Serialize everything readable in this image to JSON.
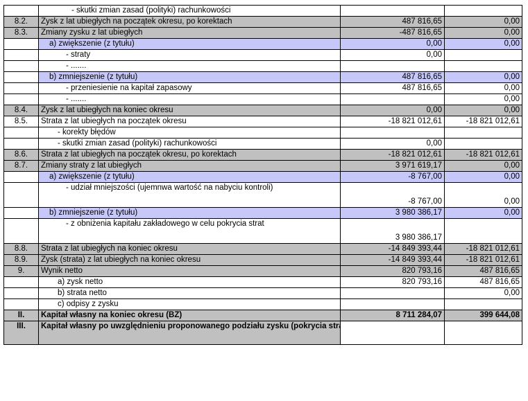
{
  "rows": [
    {
      "num": "",
      "label": "- skutki zmian zasad (polityki) rachunkowości",
      "v1": "",
      "v2": "",
      "style": "white",
      "indent": 44
    },
    {
      "num": "8.2.",
      "label": "Zysk z lat ubiegłych na początek okresu, po korektach",
      "v1": "487 816,65",
      "v2": "0,00",
      "style": "gray",
      "indent": 0
    },
    {
      "num": "8.3.",
      "label": "Zmiany zysku z lat ubiegłych",
      "v1": "-487 816,65",
      "v2": "0,00",
      "style": "gray",
      "indent": 0
    },
    {
      "num": "",
      "label": "a) zwiększenie (z tytułu)",
      "v1": "0,00",
      "v2": "0,00",
      "style": "lav",
      "indent": 12
    },
    {
      "num": "",
      "label": "- straty",
      "v1": "0,00",
      "v2": "",
      "style": "white",
      "indent": 36
    },
    {
      "num": "",
      "label": "- .......",
      "v1": "",
      "v2": "",
      "style": "white",
      "indent": 36
    },
    {
      "num": "",
      "label": "b) zmniejszenie (z tytułu)",
      "v1": "487 816,65",
      "v2": "0,00",
      "style": "lav",
      "indent": 12
    },
    {
      "num": "",
      "label": "- przeniesienie na kapitał zapasowy",
      "v1": "487 816,65",
      "v2": "0,00",
      "style": "white",
      "indent": 36
    },
    {
      "num": "",
      "label": "- .......",
      "v1": "",
      "v2": "0,00",
      "style": "white",
      "indent": 36
    },
    {
      "num": "8.4.",
      "label": "Zysk z lat ubiegłych na koniec okresu",
      "v1": "0,00",
      "v2": "0,00",
      "style": "gray",
      "indent": 0
    },
    {
      "num": "8.5.",
      "label": "Strata z lat ubiegłych na początek okresu",
      "v1": "-18 821 012,61",
      "v2": "-18 821 012,61",
      "style": "white",
      "indent": 0
    },
    {
      "num": "",
      "label": "- korekty błędów",
      "v1": "",
      "v2": "",
      "style": "white",
      "indent": 24
    },
    {
      "num": "",
      "label": "- skutki zmian zasad (polityki) rachunkowości",
      "v1": "0,00",
      "v2": "",
      "style": "white",
      "indent": 24
    },
    {
      "num": "8.6.",
      "label": "Strata z lat ubiegłych na początek okresu, po korektach",
      "v1": "-18 821 012,61",
      "v2": "-18 821 012,61",
      "style": "gray",
      "indent": 0
    },
    {
      "num": "8.7.",
      "label": "Zmiany straty z lat ubiegłych",
      "v1": "3 971 619,17",
      "v2": "0,00",
      "style": "gray",
      "indent": 0
    },
    {
      "num": "",
      "label": "a) zwiększenie (z tytułu)",
      "v1": "-8 767,00",
      "v2": "0,00",
      "style": "lav",
      "indent": 12
    },
    {
      "num": "",
      "label": "- udział mniejszości (ujemnwa wartość na nabyciu kontroli)",
      "v1": "-8 767,00",
      "v2": "0,00",
      "style": "white",
      "indent": 36,
      "tall": true
    },
    {
      "num": "",
      "label": "b) zmniejszenie (z tytułu)",
      "v1": "3 980 386,17",
      "v2": "0,00",
      "style": "lav",
      "indent": 12
    },
    {
      "num": "",
      "label": "- z obniżenia kapitału zakładowego w celu pokrycia strat",
      "v1": "3 980 386,17",
      "v2": "",
      "style": "white",
      "indent": 36,
      "tall": true
    },
    {
      "num": "8.8.",
      "label": "Strata z lat ubiegłych na koniec okresu",
      "v1": "-14 849 393,44",
      "v2": "-18 821 012,61",
      "style": "gray",
      "indent": 0
    },
    {
      "num": "8.9.",
      "label": "Zysk (strata) z lat ubiegłych na koniec okresu",
      "v1": "-14 849 393,44",
      "v2": "-18 821 012,61",
      "style": "gray",
      "indent": 0
    },
    {
      "num": "9.",
      "label": "Wynik netto",
      "v1": "820 793,16",
      "v2": "487 816,65",
      "style": "gray",
      "indent": 0
    },
    {
      "num": "",
      "label": "a) zysk netto",
      "v1": "820 793,16",
      "v2": "487 816,65",
      "style": "white",
      "indent": 24
    },
    {
      "num": "",
      "label": "b) strata netto",
      "v1": "",
      "v2": "0,00",
      "style": "white",
      "indent": 24
    },
    {
      "num": "",
      "label": "c) odpisy z zysku",
      "v1": "",
      "v2": "",
      "style": "white",
      "indent": 24
    },
    {
      "num": "II.",
      "label": "Kapitał własny na koniec okresu (BZ)",
      "v1": "8 711 284,07",
      "v2": "399 644,08",
      "style": "gray bold",
      "indent": 0
    },
    {
      "num": "III.",
      "label": "Kapitał własny po uwzględnieniu proponowanego podziału zysku (pokrycia straty)",
      "v1": "",
      "v2": "",
      "style": "gray bold",
      "indent": 0,
      "wrap": true
    }
  ]
}
